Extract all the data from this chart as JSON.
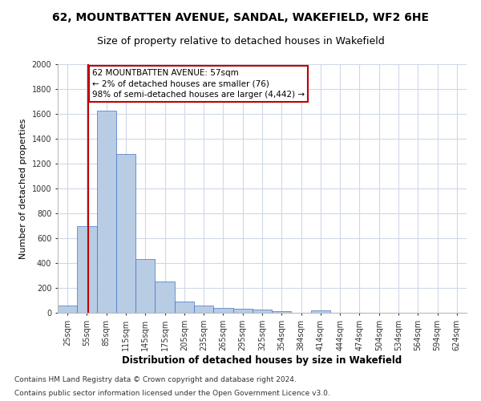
{
  "title1": "62, MOUNTBATTEN AVENUE, SANDAL, WAKEFIELD, WF2 6HE",
  "title2": "Size of property relative to detached houses in Wakefield",
  "xlabel": "Distribution of detached houses by size in Wakefield",
  "ylabel": "Number of detached properties",
  "categories": [
    "25sqm",
    "55sqm",
    "85sqm",
    "115sqm",
    "145sqm",
    "175sqm",
    "205sqm",
    "235sqm",
    "265sqm",
    "295sqm",
    "325sqm",
    "354sqm",
    "384sqm",
    "414sqm",
    "444sqm",
    "474sqm",
    "504sqm",
    "534sqm",
    "564sqm",
    "594sqm",
    "624sqm"
  ],
  "values": [
    60,
    700,
    1625,
    1275,
    435,
    250,
    90,
    55,
    40,
    30,
    25,
    15,
    0,
    20,
    0,
    0,
    0,
    0,
    0,
    0,
    0
  ],
  "bar_color": "#b8cce4",
  "bar_edge_color": "#4472c4",
  "vline_x": 1.07,
  "vline_color": "#c00000",
  "annotation_text": "62 MOUNTBATTEN AVENUE: 57sqm\n← 2% of detached houses are smaller (76)\n98% of semi-detached houses are larger (4,442) →",
  "annotation_box_color": "#c00000",
  "ylim": [
    0,
    2000
  ],
  "yticks": [
    0,
    200,
    400,
    600,
    800,
    1000,
    1200,
    1400,
    1600,
    1800,
    2000
  ],
  "footer1": "Contains HM Land Registry data © Crown copyright and database right 2024.",
  "footer2": "Contains public sector information licensed under the Open Government Licence v3.0.",
  "bg_color": "#ffffff",
  "grid_color": "#d0d8e8",
  "title1_fontsize": 10,
  "title2_fontsize": 9,
  "xlabel_fontsize": 8.5,
  "ylabel_fontsize": 8,
  "tick_fontsize": 7,
  "footer_fontsize": 6.5,
  "annot_fontsize": 7.5
}
